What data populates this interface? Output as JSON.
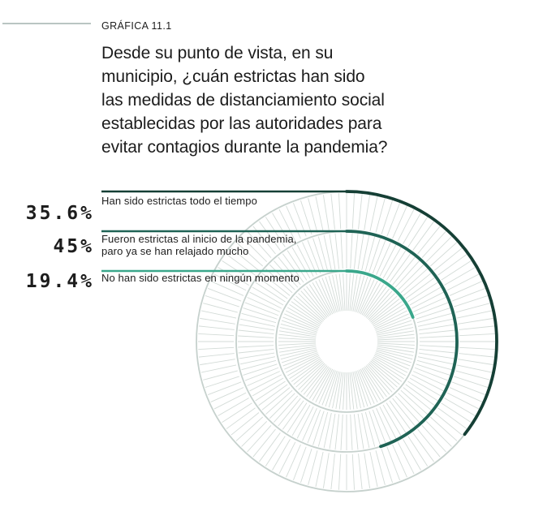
{
  "header": {
    "kicker": "GRÁFICA 11.1",
    "title": "Desde su punto de vista, en su\nmunicipio, ¿cuán estrictas han sido\nlas medidas de distanciamiento social\nestablecidas por las autoridades para\nevitar contagios durante la pandemia?"
  },
  "chart_data": {
    "type": "radial_gauge",
    "unit": "percent",
    "start_angle_deg": 0,
    "direction": "clockwise",
    "rings": [
      {
        "label": "Han sido estrictas todo el tiempo",
        "value": 35.6,
        "value_label": "35.6%",
        "color": "#153f35"
      },
      {
        "label": "Fueron estrictas al inicio de la pandemia,\nparo ya se han relajado mucho",
        "value": 45,
        "value_label": "45%",
        "color": "#1f6355"
      },
      {
        "label": "No han sido estrictas en ningún momento",
        "value": 19.4,
        "value_label": "19.4%",
        "color": "#3aa78b"
      }
    ],
    "grid": {
      "ring_color": "#c6d1cd",
      "tick_color": "#d3dbd7",
      "ticks_per_ring": 120
    }
  },
  "colors": {
    "background": "#ffffff",
    "text": "#1d1d1d",
    "rule": "#b9c5c2"
  }
}
